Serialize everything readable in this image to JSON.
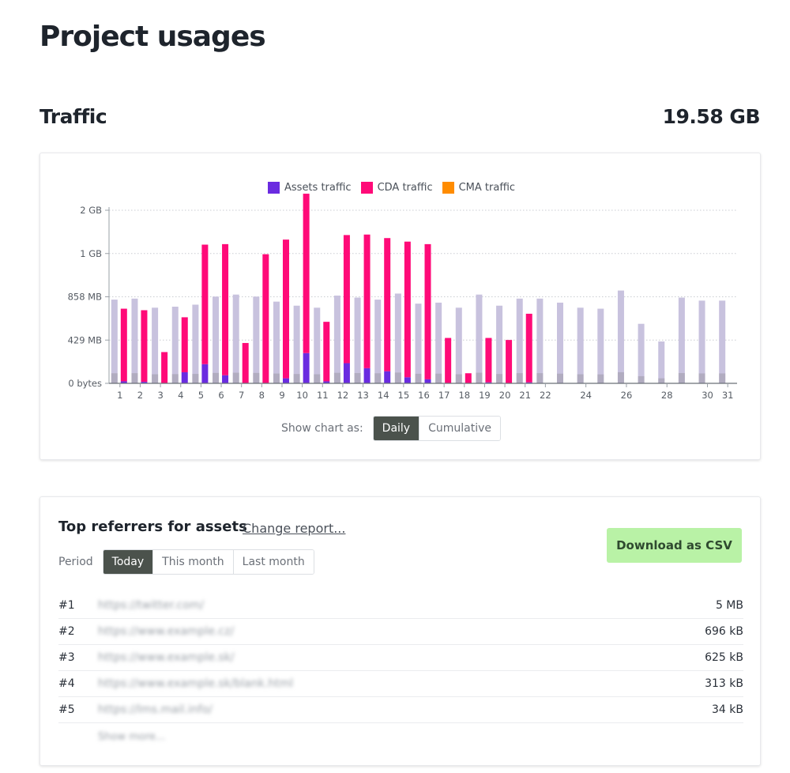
{
  "page": {
    "title": "Project usages"
  },
  "traffic": {
    "title": "Traffic",
    "total": "19.58 GB"
  },
  "legend": [
    {
      "label": "Assets traffic",
      "color": "#6a2be0"
    },
    {
      "label": "CDA traffic",
      "color": "#ff0a78"
    },
    {
      "label": "CMA traffic",
      "color": "#ff8c00"
    }
  ],
  "chart_toggle": {
    "label": "Show chart as:",
    "options": [
      "Daily",
      "Cumulative"
    ],
    "active": "Daily"
  },
  "chart_data": {
    "type": "bar",
    "stacked": true,
    "grid": "dotted horizontal",
    "y_ticks": [
      "0 bytes",
      "429 MB",
      "858 MB",
      "1 GB",
      "2 GB"
    ],
    "y_tick_values_mb": [
      0,
      429,
      858,
      1287,
      1716
    ],
    "x_tick_labels": [
      "1",
      "2",
      "3",
      "4",
      "5",
      "6",
      "7",
      "8",
      "9",
      "10",
      "11",
      "12",
      "13",
      "14",
      "15",
      "16",
      "17",
      "18",
      "19",
      "20",
      "21",
      "22",
      "24",
      "26",
      "28",
      "30",
      "31"
    ],
    "days": [
      1,
      2,
      3,
      4,
      5,
      6,
      7,
      8,
      9,
      10,
      11,
      12,
      13,
      14,
      15,
      16,
      17,
      18,
      19,
      20,
      21,
      22,
      24,
      25,
      26,
      27,
      28,
      29,
      30,
      31
    ],
    "series": [
      {
        "name": "Assets traffic",
        "color": "#6a2be0",
        "values": [
          20,
          15,
          0,
          110,
          190,
          80,
          0,
          0,
          50,
          300,
          20,
          200,
          150,
          120,
          60,
          40,
          0,
          0,
          10,
          0,
          10,
          0,
          0,
          0,
          0,
          0,
          0,
          0,
          0,
          0
        ]
      },
      {
        "name": "CDA traffic",
        "color": "#ff0a78",
        "values": [
          720,
          710,
          310,
          545,
          1185,
          1300,
          400,
          1280,
          1375,
          1580,
          590,
          1270,
          1325,
          1320,
          1345,
          1340,
          450,
          100,
          440,
          430,
          680,
          0,
          0,
          0,
          0,
          0,
          0,
          0,
          0,
          0
        ]
      },
      {
        "name": "CMA traffic",
        "color": "#ff8c00",
        "values": [
          0,
          0,
          0,
          0,
          0,
          0,
          0,
          0,
          0,
          0,
          0,
          0,
          0,
          0,
          0,
          0,
          0,
          0,
          0,
          0,
          0,
          0,
          0,
          0,
          0,
          0,
          0,
          0,
          0,
          0
        ]
      }
    ],
    "comparison_series": {
      "color": "#c8c2de",
      "values": [
        830,
        840,
        750,
        760,
        780,
        860,
        880,
        860,
        810,
        770,
        750,
        870,
        850,
        830,
        890,
        790,
        800,
        750,
        880,
        770,
        840,
        840,
        800,
        750,
        740,
        920,
        590,
        415,
        850,
        820,
        820
      ]
    }
  },
  "referrers": {
    "title": "Top referrers for assets",
    "change_link": "Change report...",
    "period_label": "Period",
    "periods": [
      "Today",
      "This month",
      "Last month"
    ],
    "active_period": "Today",
    "download_label": "Download as CSV",
    "rows": [
      {
        "rank": "#1",
        "url": "https://twitter.com/",
        "size": "5 MB"
      },
      {
        "rank": "#2",
        "url": "https://www.example.cz/",
        "size": "696 kB"
      },
      {
        "rank": "#3",
        "url": "https://www.example.sk/",
        "size": "625 kB"
      },
      {
        "rank": "#4",
        "url": "https://www.example.sk/blank.html",
        "size": "313 kB"
      },
      {
        "rank": "#5",
        "url": "https://lms.mail.info/",
        "size": "34 kB"
      }
    ],
    "more_label": "Show more..."
  }
}
